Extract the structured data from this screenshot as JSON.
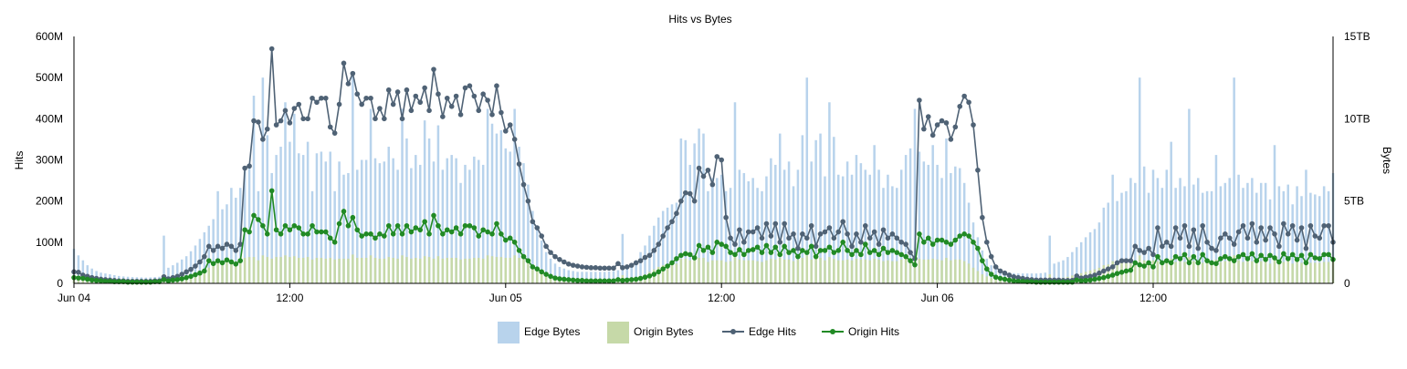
{
  "chart_data": {
    "type": "bar+line",
    "title": "Hits vs Bytes",
    "ylabel_left": "Hits",
    "ylabel_right": "Bytes",
    "y_left_ticks": [
      "0",
      "100M",
      "200M",
      "300M",
      "400M",
      "500M",
      "600M"
    ],
    "y_left_range": [
      0,
      600
    ],
    "y_left_unit": "M",
    "y_right_ticks": [
      "0",
      "5TB",
      "10TB",
      "15TB"
    ],
    "y_right_range": [
      0,
      15
    ],
    "y_right_unit": "TB",
    "x_ticks": [
      {
        "label": "Jun 04",
        "hour": 0
      },
      {
        "label": "12:00",
        "hour": 12
      },
      {
        "label": "Jun 05",
        "hour": 24
      },
      {
        "label": "12:00",
        "hour": 36
      },
      {
        "label": "Jun 06",
        "hour": 48
      },
      {
        "label": "12:00",
        "hour": 60
      }
    ],
    "x_range_hours": [
      0,
      70
    ],
    "interval_minutes": 15,
    "legend_position": "bottom",
    "series": [
      {
        "name": "Edge Bytes",
        "kind": "bar",
        "axis": "right",
        "color": "#b8d3ec",
        "values": [
          2.1,
          1.7,
          1.4,
          1.1,
          0.9,
          0.75,
          0.65,
          0.6,
          0.55,
          0.5,
          0.45,
          0.42,
          0.4,
          0.38,
          0.37,
          0.36,
          0.35,
          0.36,
          0.38,
          0.4,
          2.9,
          0.95,
          1.1,
          1.25,
          1.45,
          1.65,
          1.95,
          2.3,
          2.7,
          3.1,
          3.5,
          3.9,
          5.6,
          4.5,
          4.8,
          5.8,
          5.2,
          5.8,
          7.1,
          7.3,
          11.4,
          5.6,
          12.5,
          9.0,
          6.7,
          7.8,
          8.3,
          11.0,
          8.6,
          10.3,
          7.9,
          7.8,
          8.6,
          5.6,
          7.9,
          8.0,
          7.4,
          8.0,
          5.6,
          7.4,
          6.6,
          6.7,
          12.7,
          6.9,
          7.5,
          7.5,
          10.6,
          7.6,
          7.3,
          7.4,
          8.3,
          7.6,
          6.9,
          10.6,
          8.8,
          7.0,
          7.8,
          7.2,
          9.9,
          8.8,
          7.4,
          9.6,
          6.9,
          7.6,
          7.8,
          7.6,
          6.1,
          7.2,
          6.9,
          7.7,
          7.5,
          7.2,
          10.6,
          9.7,
          9.1,
          9.3,
          8.2,
          8.0,
          10.6,
          8.3,
          7.3,
          6.0,
          4.4,
          3.5,
          2.6,
          1.9,
          1.5,
          1.2,
          1.0,
          0.9,
          0.8,
          0.75,
          0.7,
          0.7,
          0.7,
          0.7,
          0.7,
          0.7,
          0.7,
          0.72,
          0.75,
          0.8,
          3.0,
          0.9,
          1.2,
          1.4,
          1.9,
          2.3,
          2.9,
          3.5,
          4.0,
          4.4,
          4.6,
          4.8,
          4.9,
          8.8,
          8.7,
          7.2,
          8.5,
          9.4,
          9.1,
          5.6,
          6.4,
          6.4,
          6.6,
          5.6,
          5.8,
          11.0,
          6.9,
          6.7,
          6.2,
          6.4,
          5.8,
          5.6,
          6.5,
          7.6,
          7.2,
          9.1,
          6.9,
          7.4,
          5.9,
          6.9,
          9.0,
          12.5,
          7.4,
          8.7,
          9.1,
          6.5,
          11.0,
          8.9,
          6.6,
          6.5,
          7.4,
          6.6,
          7.8,
          7.3,
          6.9,
          6.6,
          8.4,
          6.9,
          5.8,
          6.6,
          5.9,
          5.8,
          6.9,
          7.8,
          8.2,
          10.6,
          8.0,
          7.4,
          7.2,
          8.4,
          7.2,
          6.4,
          8.8,
          6.7,
          7.1,
          7.0,
          6.1,
          4.9,
          3.7,
          2.8,
          2.0,
          1.5,
          1.1,
          0.9,
          0.8,
          0.7,
          0.65,
          0.62,
          0.6,
          0.6,
          0.6,
          0.6,
          0.6,
          0.62,
          0.65,
          2.9,
          1.2,
          1.3,
          1.4,
          1.6,
          1.9,
          2.2,
          2.5,
          2.8,
          3.1,
          3.3,
          3.7,
          4.6,
          4.9,
          6.6,
          5.0,
          5.5,
          5.6,
          6.4,
          6.1,
          12.5,
          7.1,
          5.5,
          6.9,
          6.4,
          5.8,
          6.9,
          8.6,
          5.8,
          6.4,
          5.9,
          10.6,
          6.0,
          6.4,
          5.5,
          5.6,
          5.6,
          7.8,
          5.9,
          6.1,
          6.4,
          12.5,
          6.6,
          5.8,
          6.1,
          6.4,
          5.5,
          6.1,
          6.1,
          5.1,
          8.4,
          5.9,
          5.6,
          6.0,
          4.8,
          5.9,
          5.3,
          6.9,
          5.5,
          5.4,
          5.3,
          5.9,
          5.6,
          6.7,
          5.6,
          5.4,
          7.5,
          5.6,
          6.9,
          6.6,
          6.9,
          14.1,
          8.7,
          7.7,
          10.1,
          8.6,
          7.9,
          11.0,
          7.6,
          9.2,
          8.0,
          7.9
        ]
      },
      {
        "name": "Origin Bytes",
        "kind": "bar",
        "axis": "right",
        "color": "#c6d9a8",
        "values": [
          0.5,
          0.4,
          0.3,
          0.25,
          0.2,
          0.18,
          0.15,
          0.14,
          0.13,
          0.12,
          0.11,
          0.1,
          0.1,
          0.1,
          0.1,
          0.1,
          0.1,
          0.1,
          0.1,
          0.1,
          0.55,
          0.25,
          0.3,
          0.35,
          0.4,
          0.45,
          0.55,
          0.65,
          0.75,
          0.85,
          0.95,
          1.05,
          1.3,
          1.2,
          1.3,
          1.4,
          1.35,
          1.4,
          1.55,
          1.6,
          1.6,
          1.4,
          1.7,
          1.6,
          1.5,
          1.6,
          1.6,
          1.7,
          1.6,
          1.65,
          1.55,
          1.55,
          1.6,
          1.45,
          1.55,
          1.55,
          1.5,
          1.55,
          1.45,
          1.5,
          1.5,
          1.5,
          1.75,
          1.55,
          1.55,
          1.55,
          1.7,
          1.55,
          1.5,
          1.5,
          1.6,
          1.55,
          1.5,
          1.7,
          1.6,
          1.5,
          1.55,
          1.5,
          1.65,
          1.6,
          1.5,
          1.65,
          1.5,
          1.55,
          1.55,
          1.55,
          1.45,
          1.5,
          1.5,
          1.55,
          1.55,
          1.5,
          1.7,
          1.65,
          1.6,
          1.6,
          1.55,
          1.55,
          1.7,
          1.55,
          1.5,
          1.4,
          1.1,
          0.9,
          0.7,
          0.55,
          0.42,
          0.35,
          0.3,
          0.25,
          0.22,
          0.2,
          0.2,
          0.2,
          0.2,
          0.2,
          0.2,
          0.2,
          0.2,
          0.2,
          0.2,
          0.22,
          0.5,
          0.25,
          0.3,
          0.35,
          0.45,
          0.55,
          0.7,
          0.85,
          1.0,
          1.1,
          1.15,
          1.2,
          1.2,
          1.5,
          1.5,
          1.4,
          1.5,
          1.55,
          1.55,
          1.3,
          1.4,
          1.4,
          1.4,
          1.3,
          1.35,
          1.6,
          1.45,
          1.4,
          1.4,
          1.4,
          1.35,
          1.3,
          1.4,
          1.5,
          1.45,
          1.55,
          1.45,
          1.45,
          1.35,
          1.45,
          1.55,
          1.7,
          1.45,
          1.5,
          1.55,
          1.4,
          1.6,
          1.5,
          1.4,
          1.4,
          1.45,
          1.4,
          1.5,
          1.45,
          1.45,
          1.4,
          1.5,
          1.45,
          1.35,
          1.4,
          1.35,
          1.35,
          1.45,
          1.5,
          1.5,
          1.6,
          1.5,
          1.45,
          1.45,
          1.5,
          1.45,
          1.4,
          1.55,
          1.4,
          1.45,
          1.45,
          1.35,
          1.2,
          0.95,
          0.75,
          0.55,
          0.42,
          0.32,
          0.26,
          0.22,
          0.2,
          0.18,
          0.17,
          0.16,
          0.16,
          0.16,
          0.16,
          0.16,
          0.16,
          0.17,
          0.55,
          0.3,
          0.32,
          0.35,
          0.4,
          0.48,
          0.55,
          0.62,
          0.7,
          0.78,
          0.85,
          0.95,
          1.1,
          1.15,
          1.35,
          1.2,
          1.25,
          1.3,
          1.35,
          1.35,
          1.7,
          1.4,
          1.25,
          1.4,
          1.35,
          1.3,
          1.4,
          1.5,
          1.3,
          1.35,
          1.3,
          1.6,
          1.35,
          1.35,
          1.25,
          1.3,
          1.3,
          1.45,
          1.3,
          1.35,
          1.35,
          1.7,
          1.4,
          1.3,
          1.35,
          1.35,
          1.25,
          1.35,
          1.35,
          1.2,
          1.5,
          1.3,
          1.3,
          1.35,
          1.2,
          1.3,
          1.25,
          1.4,
          1.25,
          1.25,
          1.25,
          1.3,
          1.3,
          1.4,
          1.3,
          1.25,
          1.45,
          1.3,
          1.4,
          1.4,
          1.4,
          1.8,
          1.55,
          1.5,
          1.65,
          1.55,
          1.5,
          1.65,
          1.5,
          1.6,
          1.55,
          1.5
        ]
      },
      {
        "name": "Edge Hits",
        "kind": "line",
        "axis": "left",
        "color": "#4f6275",
        "values": [
          28,
          27,
          20,
          17,
          14,
          12,
          10,
          9,
          8,
          7,
          6,
          6,
          5,
          5,
          5,
          5,
          5,
          5,
          6,
          6,
          16,
          11,
          14,
          17,
          22,
          28,
          34,
          42,
          52,
          65,
          90,
          80,
          90,
          85,
          95,
          90,
          80,
          95,
          280,
          285,
          395,
          392,
          350,
          375,
          570,
          385,
          395,
          420,
          390,
          425,
          435,
          400,
          400,
          450,
          440,
          450,
          450,
          380,
          365,
          435,
          535,
          485,
          510,
          460,
          435,
          450,
          450,
          400,
          425,
          400,
          470,
          435,
          465,
          400,
          470,
          420,
          455,
          440,
          475,
          420,
          520,
          460,
          405,
          450,
          430,
          455,
          410,
          475,
          480,
          455,
          420,
          460,
          445,
          410,
          480,
          415,
          370,
          385,
          350,
          290,
          240,
          200,
          150,
          135,
          115,
          90,
          75,
          65,
          58,
          52,
          47,
          44,
          42,
          40,
          39,
          38,
          38,
          37,
          37,
          37,
          37,
          48,
          38,
          40,
          44,
          50,
          55,
          63,
          68,
          80,
          95,
          115,
          135,
          150,
          170,
          200,
          220,
          218,
          200,
          280,
          260,
          275,
          240,
          308,
          300,
          160,
          110,
          95,
          130,
          100,
          125,
          125,
          135,
          110,
          145,
          115,
          145,
          100,
          145,
          110,
          120,
          85,
          120,
          110,
          140,
          90,
          120,
          125,
          135,
          110,
          125,
          150,
          120,
          90,
          120,
          100,
          140,
          110,
          125,
          95,
          130,
          110,
          120,
          110,
          100,
          95,
          75,
          60,
          445,
          375,
          405,
          360,
          385,
          395,
          390,
          350,
          380,
          430,
          455,
          440,
          385,
          275,
          160,
          100,
          65,
          40,
          30,
          25,
          20,
          16,
          14,
          12,
          10,
          9,
          8,
          8,
          8,
          8,
          8,
          8,
          7,
          7,
          7,
          18,
          13,
          15,
          17,
          20,
          25,
          30,
          35,
          40,
          50,
          55,
          55,
          55,
          90,
          80,
          75,
          85,
          70,
          135,
          90,
          100,
          90,
          135,
          110,
          140,
          90,
          130,
          85,
          140,
          100,
          85,
          80,
          110,
          120,
          110,
          95,
          125,
          140,
          110,
          145,
          100,
          135,
          105,
          135,
          120,
          90,
          145,
          120,
          140,
          105,
          135,
          85,
          140,
          115,
          110,
          140,
          140,
          100,
          150,
          140,
          155,
          150,
          115,
          135,
          100,
          170,
          120,
          140,
          110,
          135,
          120,
          115,
          160,
          130,
          140,
          100,
          155,
          115,
          145,
          120,
          110,
          195
        ]
      },
      {
        "name": "Origin Hits",
        "kind": "line",
        "axis": "left",
        "color": "#218a25",
        "values": [
          14,
          13,
          12,
          10,
          8,
          7,
          6,
          5,
          5,
          4,
          4,
          4,
          3,
          3,
          3,
          3,
          3,
          3,
          4,
          4,
          9,
          6,
          8,
          9,
          11,
          14,
          17,
          21,
          25,
          30,
          55,
          48,
          55,
          50,
          57,
          52,
          47,
          55,
          130,
          125,
          165,
          155,
          140,
          120,
          225,
          130,
          120,
          140,
          130,
          140,
          135,
          120,
          120,
          140,
          125,
          125,
          125,
          110,
          100,
          145,
          175,
          140,
          160,
          130,
          115,
          120,
          120,
          110,
          120,
          115,
          140,
          120,
          140,
          120,
          140,
          125,
          135,
          130,
          150,
          120,
          165,
          140,
          120,
          130,
          125,
          135,
          120,
          140,
          140,
          135,
          115,
          130,
          125,
          120,
          145,
          120,
          105,
          110,
          100,
          80,
          65,
          55,
          40,
          35,
          28,
          22,
          17,
          13,
          11,
          10,
          9,
          8,
          7,
          7,
          6,
          6,
          6,
          6,
          6,
          6,
          6,
          9,
          7,
          8,
          9,
          10,
          12,
          15,
          18,
          22,
          28,
          35,
          42,
          50,
          60,
          68,
          72,
          70,
          62,
          92,
          80,
          88,
          75,
          100,
          95,
          90,
          75,
          70,
          82,
          70,
          80,
          82,
          88,
          75,
          92,
          75,
          88,
          70,
          90,
          75,
          80,
          65,
          80,
          75,
          90,
          65,
          80,
          80,
          88,
          75,
          80,
          100,
          80,
          70,
          80,
          70,
          95,
          75,
          80,
          70,
          85,
          75,
          80,
          75,
          70,
          65,
          55,
          45,
          120,
          100,
          110,
          95,
          105,
          105,
          100,
          95,
          105,
          115,
          120,
          115,
          100,
          85,
          55,
          35,
          22,
          15,
          12,
          10,
          8,
          6,
          5,
          5,
          4,
          4,
          3,
          3,
          3,
          3,
          3,
          3,
          3,
          3,
          3,
          8,
          6,
          7,
          8,
          10,
          12,
          14,
          17,
          20,
          24,
          27,
          30,
          32,
          50,
          45,
          42,
          50,
          40,
          65,
          50,
          55,
          50,
          65,
          60,
          70,
          50,
          65,
          50,
          70,
          55,
          50,
          48,
          60,
          65,
          60,
          55,
          65,
          70,
          60,
          72,
          55,
          68,
          58,
          68,
          62,
          52,
          72,
          60,
          70,
          58,
          68,
          50,
          70,
          62,
          60,
          70,
          70,
          58,
          75,
          70,
          75,
          75,
          62,
          68,
          58,
          80,
          65,
          70,
          62,
          68,
          65,
          62,
          78,
          68,
          70,
          58,
          75,
          62,
          72,
          65,
          62,
          110
        ]
      }
    ]
  }
}
